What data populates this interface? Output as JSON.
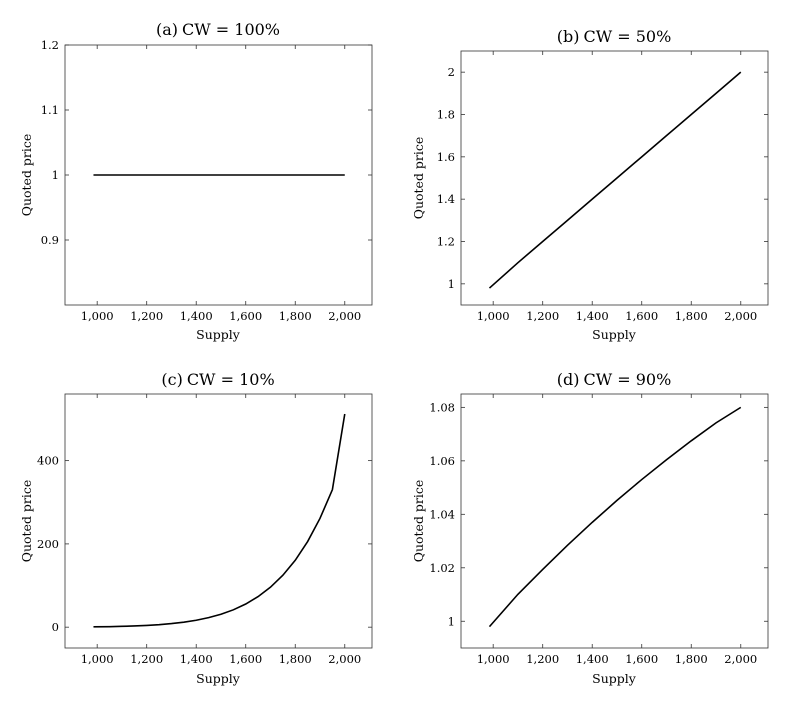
{
  "chart_data": [
    {
      "type": "line",
      "panel": "(a)",
      "title_prefix": "(a)",
      "title_math": "CW",
      "title_rest": " = 100%",
      "xlabel": "Supply",
      "ylabel": "Quoted price",
      "xlim": [
        870,
        2110
      ],
      "ylim": [
        0.8,
        1.2
      ],
      "xticks": [
        1000,
        1200,
        1400,
        1600,
        1800,
        2000
      ],
      "xtick_labels": [
        "1,000",
        "1,200",
        "1,400",
        "1,600",
        "1,800",
        "2,000"
      ],
      "yticks": [
        0.9,
        1,
        1.1,
        1.2
      ],
      "ytick_labels": [
        "0.9",
        "1",
        "1.1",
        "1.2"
      ],
      "grid": false,
      "series": [
        {
          "x": [
            985,
            1050,
            1100,
            1200,
            1300,
            1400,
            1500,
            1600,
            1700,
            1800,
            1900,
            2000
          ],
          "y": [
            1,
            1,
            1,
            1,
            1,
            1,
            1,
            1,
            1,
            1,
            1,
            1
          ]
        }
      ]
    },
    {
      "type": "line",
      "panel": "(b)",
      "title_prefix": "(b)",
      "title_math": "CW",
      "title_rest": " = 50%",
      "xlabel": "Supply",
      "ylabel": "Quoted price",
      "xlim": [
        870,
        2110
      ],
      "ylim": [
        0.9,
        2.1
      ],
      "xticks": [
        1000,
        1200,
        1400,
        1600,
        1800,
        2000
      ],
      "xtick_labels": [
        "1,000",
        "1,200",
        "1,400",
        "1,600",
        "1,800",
        "2,000"
      ],
      "yticks": [
        1,
        1.2,
        1.4,
        1.6,
        1.8,
        2
      ],
      "ytick_labels": [
        "1",
        "1.2",
        "1.4",
        "1.6",
        "1.8",
        "2"
      ],
      "grid": false,
      "series": [
        {
          "x": [
            985,
            1100,
            1200,
            1300,
            1400,
            1500,
            1600,
            1700,
            1800,
            1900,
            2000
          ],
          "y": [
            0.98,
            1.1,
            1.2,
            1.3,
            1.4,
            1.5,
            1.6,
            1.7,
            1.8,
            1.9,
            2.0
          ]
        }
      ]
    },
    {
      "type": "line",
      "panel": "(c)",
      "title_prefix": "(c)",
      "title_math": "CW",
      "title_rest": " = 10%",
      "xlabel": "Supply",
      "ylabel": "Quoted price",
      "xlim": [
        870,
        2110
      ],
      "ylim": [
        -50,
        560
      ],
      "xticks": [
        1000,
        1200,
        1400,
        1600,
        1800,
        2000
      ],
      "xtick_labels": [
        "1,000",
        "1,200",
        "1,400",
        "1,600",
        "1,800",
        "2,000"
      ],
      "yticks": [
        0,
        200,
        400
      ],
      "ytick_labels": [
        "0",
        "200",
        "400"
      ],
      "grid": false,
      "series": [
        {
          "x": [
            985,
            1050,
            1100,
            1150,
            1200,
            1250,
            1300,
            1350,
            1400,
            1450,
            1500,
            1550,
            1600,
            1650,
            1700,
            1750,
            1800,
            1850,
            1900,
            1950,
            2000
          ],
          "y": [
            0.9,
            1.3,
            2.0,
            2.9,
            4.2,
            6.0,
            8.6,
            12.0,
            16.7,
            22.9,
            31.0,
            41.7,
            55.6,
            73.4,
            96.1,
            124.7,
            160.7,
            205.7,
            261.4,
            330.3,
            512.0
          ]
        }
      ]
    },
    {
      "type": "line",
      "panel": "(d)",
      "title_prefix": "(d)",
      "title_math": "CW",
      "title_rest": " = 90%",
      "xlabel": "Supply",
      "ylabel": "Quoted price",
      "xlim": [
        870,
        2110
      ],
      "ylim": [
        0.99,
        1.085
      ],
      "xticks": [
        1000,
        1200,
        1400,
        1600,
        1800,
        2000
      ],
      "xtick_labels": [
        "1,000",
        "1,200",
        "1,400",
        "1,600",
        "1,800",
        "2,000"
      ],
      "yticks": [
        1,
        1.02,
        1.04,
        1.06,
        1.08
      ],
      "ytick_labels": [
        "1",
        "1.02",
        "1.04",
        "1.06",
        "1.08"
      ],
      "grid": false,
      "series": [
        {
          "x": [
            985,
            1100,
            1200,
            1300,
            1400,
            1500,
            1600,
            1700,
            1800,
            1900,
            2000
          ],
          "y": [
            0.998,
            1.0101,
            1.0194,
            1.0284,
            1.037,
            1.0452,
            1.053,
            1.0604,
            1.0675,
            1.0742,
            1.08
          ]
        }
      ]
    }
  ]
}
